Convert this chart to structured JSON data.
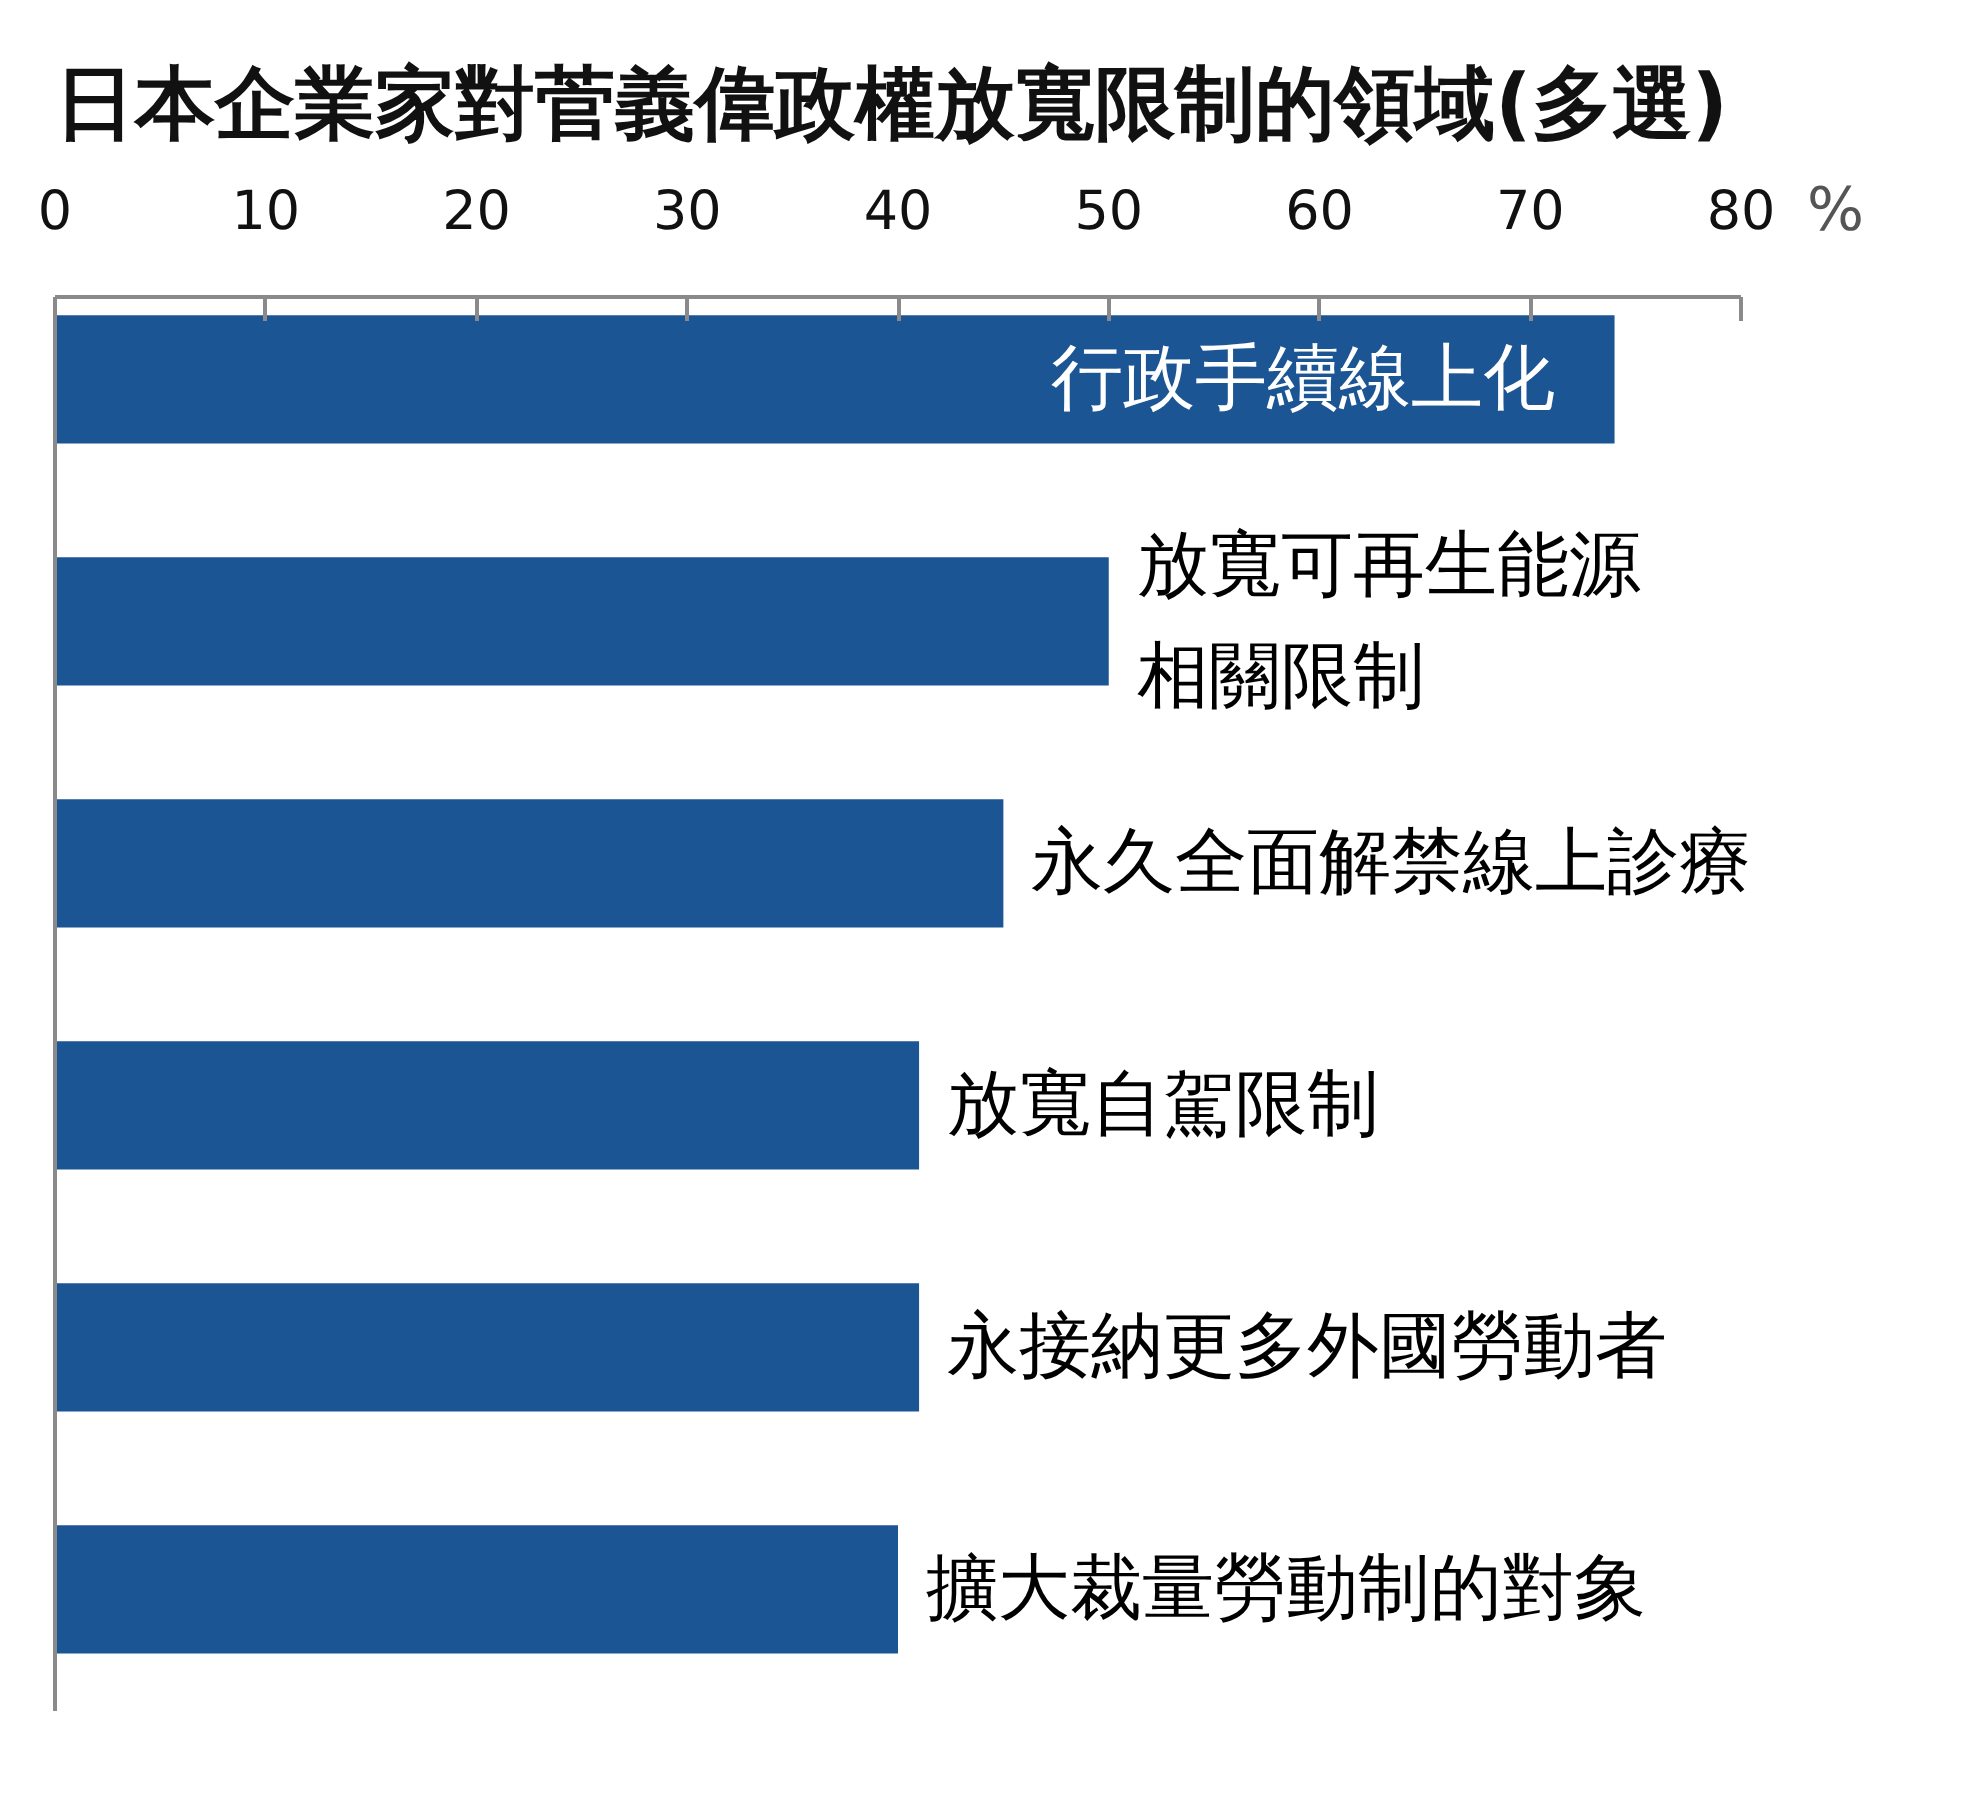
{
  "chart_data": {
    "type": "bar",
    "orientation": "horizontal",
    "title": "日本企業家對菅義偉政權放寬限制的領域(多選)",
    "xlabel": "%",
    "categories": [
      "行政手續線上化",
      "放寬可再生能源相關限制",
      "永久全面解禁線上診療",
      "放寬自駕限制",
      "永接納更多外國勞動者",
      "擴大裁量勞動制的對象"
    ],
    "values": [
      74,
      50,
      45,
      41,
      41,
      40
    ],
    "color": "#1b5593",
    "xlim": [
      0,
      80
    ],
    "xticks": [
      0,
      10,
      20,
      30,
      40,
      50,
      60,
      70,
      80
    ],
    "grid": false
  }
}
